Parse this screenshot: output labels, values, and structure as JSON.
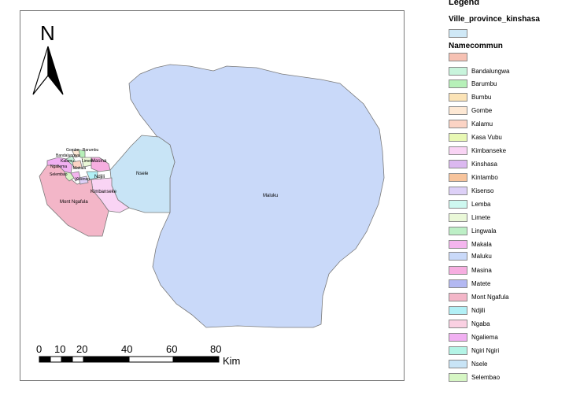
{
  "legend": {
    "title": "Legend",
    "layer_province": "Ville_province_kinshasa",
    "province_color": "#cfe8f6",
    "field_name": "Namecommun",
    "empty_color": "#f6c1b3",
    "items": [
      {
        "label": "Bandalungwa",
        "color": "#c8f4dc"
      },
      {
        "label": "Barumbu",
        "color": "#b6f0b8"
      },
      {
        "label": "Bumbu",
        "color": "#fbe3b6"
      },
      {
        "label": "Gombe",
        "color": "#fde8d4"
      },
      {
        "label": "Kalamu",
        "color": "#fbd3c4"
      },
      {
        "label": "Kasa Vubu",
        "color": "#e8f8b4"
      },
      {
        "label": "Kimbanseke",
        "color": "#f9d4f4"
      },
      {
        "label": "Kinshasa",
        "color": "#dbb8f0"
      },
      {
        "label": "Kintambo",
        "color": "#f7c49c"
      },
      {
        "label": "Kisenso",
        "color": "#ddd0f7"
      },
      {
        "label": "Lemba",
        "color": "#cef8f0"
      },
      {
        "label": "Limete",
        "color": "#eaf8d8"
      },
      {
        "label": "Lingwala",
        "color": "#bdefc6"
      },
      {
        "label": "Makala",
        "color": "#f4b5ee"
      },
      {
        "label": "Maluku",
        "color": "#c9d9f9"
      },
      {
        "label": "Masina",
        "color": "#f6aee0"
      },
      {
        "label": "Matete",
        "color": "#b3b8f2"
      },
      {
        "label": "Mont Ngafula",
        "color": "#f3b6c8"
      },
      {
        "label": "Ndjili",
        "color": "#b2f0f6"
      },
      {
        "label": "Ngaba",
        "color": "#fad0e2"
      },
      {
        "label": "Ngaliema",
        "color": "#f1b0f2"
      },
      {
        "label": "Ngiri Ngiri",
        "color": "#b4f4e6"
      },
      {
        "label": "Nsele",
        "color": "#c8e4f6"
      },
      {
        "label": "Selembao",
        "color": "#d6f6c4"
      }
    ]
  },
  "map": {
    "north_label": "N",
    "communes": {
      "maluku": "Maluku",
      "nsele": "Nsele",
      "kimbanseke": "Kimbanseke",
      "mont_ngafula": "Mont Ngafula",
      "masina": "Masina",
      "ndjili": "Ndjili",
      "ngaliema": "Ngaliema",
      "selembao": "Selembao",
      "gombe": "Gombe",
      "barumbu": "Barumbu",
      "bandalungwa": "Bandalungwa",
      "kalamu": "Kalamu",
      "limete": "Limete",
      "makala": "Makala",
      "kisenso": "Kisenso"
    },
    "scale": {
      "ticks": [
        "0",
        "10",
        "20",
        "40",
        "60",
        "80"
      ],
      "unit": "Kim"
    }
  }
}
